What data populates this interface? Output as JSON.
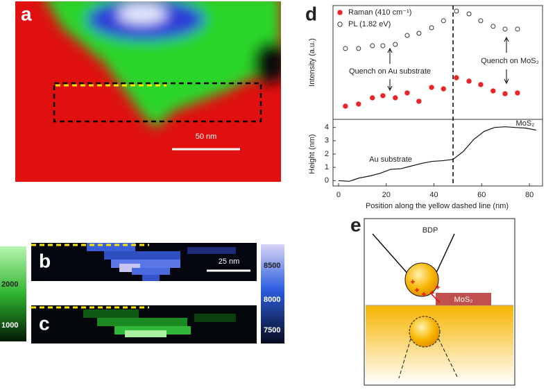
{
  "panels": {
    "a": "a",
    "b": "b",
    "c": "c",
    "d": "d",
    "e": "e"
  },
  "scale_bars": {
    "a": "50 nm",
    "b": "25 nm"
  },
  "colorbars": {
    "green_ticks": [
      2000,
      1000
    ],
    "blue_ticks": [
      8500,
      8000,
      7500
    ]
  },
  "schematic": {
    "tip": "BDP",
    "flake": "MoS₂"
  },
  "chart_data": [
    {
      "type": "scatter",
      "ylabel": "Intensity (a.u.)",
      "xlim": [
        -2.3,
        85.5
      ],
      "ylim": [
        0,
        100
      ],
      "reference_line_x": 48,
      "annotations": [
        "Quench on Au substrate",
        "Quench on MoS₂"
      ],
      "series": [
        {
          "name": "Raman (410 cm⁻¹)",
          "color": "#e8262a",
          "marker": "filled",
          "x": [
            2.9,
            8.4,
            14.2,
            18.6,
            23.8,
            28.8,
            33.7,
            39,
            44,
            49.4,
            54.7,
            59.6,
            64.8,
            69.8,
            75
          ],
          "values": [
            11.9,
            13.8,
            19.4,
            21.3,
            19.4,
            23.8,
            16.3,
            28.8,
            27.5,
            37.5,
            34.4,
            31.3,
            25.6,
            23.1,
            23.8
          ]
        },
        {
          "name": "PL (1.82 eV)",
          "color": "#333333",
          "marker": "open",
          "x": [
            2.9,
            8.4,
            14.2,
            18.6,
            23.8,
            28.8,
            33.7,
            39,
            44,
            49.4,
            54.7,
            59.6,
            64.8,
            69.8,
            75
          ],
          "values": [
            63.8,
            63.8,
            66.3,
            66.3,
            67.5,
            75.6,
            77.5,
            82.5,
            88.8,
            97.5,
            95,
            88.8,
            83.8,
            81.3,
            81.3
          ]
        }
      ]
    },
    {
      "type": "line",
      "xlabel": "Position along the yellow dashed line  (nm)",
      "ylabel": "Height  (nm)",
      "xlim": [
        -2.3,
        85.5
      ],
      "ylim": [
        -0.4,
        4.4
      ],
      "xticks": [
        0,
        20,
        40,
        60,
        80
      ],
      "yticks": [
        0,
        1,
        2,
        3,
        4
      ],
      "color": "#111111",
      "annotations": [
        "Au substrate",
        "MoS₂"
      ],
      "x": [
        0,
        4.4,
        8.7,
        13.1,
        17.4,
        21.8,
        26.2,
        30.5,
        34.9,
        39.2,
        43.6,
        48,
        52.3,
        56.7,
        61,
        65.4,
        69.8,
        74.1,
        78.5,
        82.8
      ],
      "values": [
        0,
        -0.05,
        0.2,
        0.35,
        0.55,
        0.85,
        0.9,
        1.1,
        1.3,
        1.45,
        1.5,
        1.6,
        2.2,
        3.1,
        3.7,
        4.0,
        4.05,
        4.0,
        3.95,
        3.8
      ]
    }
  ]
}
